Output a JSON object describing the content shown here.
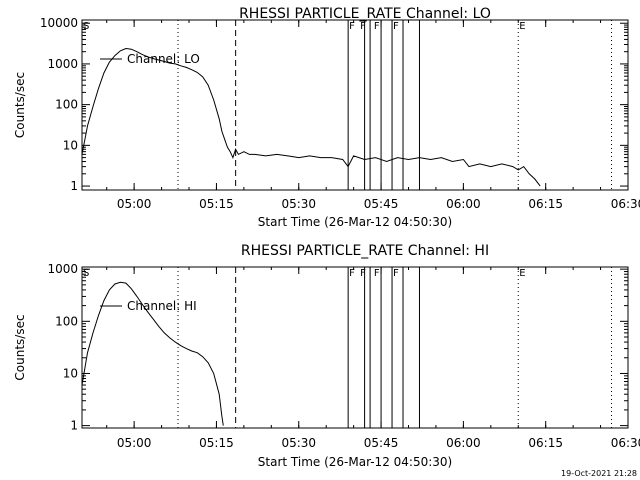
{
  "footer": {
    "timestamp": "19-Oct-2021 21:28"
  },
  "chart_data": [
    {
      "type": "line",
      "title": "RHESSI PARTICLE_RATE Channel: LO",
      "xlabel": "Start Time (26-Mar-12 04:50:30)",
      "ylabel": "Counts/sec",
      "yscale": "log",
      "xlim": [
        "04:50:30",
        "06:30:00"
      ],
      "ylim": [
        0.8,
        12000
      ],
      "x_tick_labels": [
        "05:00",
        "05:15",
        "05:30",
        "05:45",
        "06:00",
        "06:15",
        "06:30"
      ],
      "y_tick_labels": [
        "1",
        "10",
        "100",
        "1000",
        "10000"
      ],
      "legend": {
        "label": "Channel: LO",
        "placement": "top-left"
      },
      "series": [
        {
          "name": "Channel: LO",
          "points": [
            [
              "04:50:30",
              6
            ],
            [
              "04:51:30",
              30
            ],
            [
              "04:52:30",
              90
            ],
            [
              "04:53:30",
              250
            ],
            [
              "04:54:30",
              600
            ],
            [
              "04:55:30",
              1100
            ],
            [
              "04:56:30",
              1600
            ],
            [
              "04:57:30",
              2100
            ],
            [
              "04:58:30",
              2400
            ],
            [
              "04:59:30",
              2300
            ],
            [
              "05:00:30",
              2000
            ],
            [
              "05:01:30",
              1700
            ],
            [
              "05:02:30",
              1500
            ],
            [
              "05:03:30",
              1350
            ],
            [
              "05:04:30",
              1250
            ],
            [
              "05:05:30",
              1150
            ],
            [
              "05:06:30",
              1050
            ],
            [
              "05:07:30",
              1000
            ],
            [
              "05:08:30",
              900
            ],
            [
              "05:09:30",
              820
            ],
            [
              "05:10:30",
              720
            ],
            [
              "05:11:30",
              620
            ],
            [
              "05:12:30",
              480
            ],
            [
              "05:13:30",
              300
            ],
            [
              "05:14:30",
              130
            ],
            [
              "05:15:30",
              45
            ],
            [
              "05:16:00",
              22
            ],
            [
              "05:16:30",
              14
            ],
            [
              "05:17:00",
              9
            ],
            [
              "05:17:30",
              7
            ],
            [
              "05:18:00",
              5
            ],
            [
              "05:18:30",
              8
            ],
            [
              "05:19:00",
              6
            ],
            [
              "05:20:00",
              7
            ],
            [
              "05:21:00",
              6
            ],
            [
              "05:22:00",
              6
            ],
            [
              "05:24:00",
              5.5
            ],
            [
              "05:26:00",
              6
            ],
            [
              "05:28:00",
              5.5
            ],
            [
              "05:30:00",
              5
            ],
            [
              "05:32:00",
              5.5
            ],
            [
              "05:34:00",
              5
            ],
            [
              "05:36:00",
              5
            ],
            [
              "05:38:00",
              4.5
            ],
            [
              "05:39:00",
              3
            ],
            [
              "05:40:00",
              5.5
            ],
            [
              "05:42:00",
              4.5
            ],
            [
              "05:44:00",
              5
            ],
            [
              "05:46:00",
              4
            ],
            [
              "05:48:00",
              5
            ],
            [
              "05:50:00",
              4.5
            ],
            [
              "05:52:00",
              5
            ],
            [
              "05:54:00",
              4.5
            ],
            [
              "05:56:00",
              5
            ],
            [
              "05:58:00",
              4
            ],
            [
              "06:00:00",
              4.5
            ],
            [
              "06:01:00",
              3
            ],
            [
              "06:03:00",
              3.5
            ],
            [
              "06:05:00",
              3
            ],
            [
              "06:07:00",
              3.5
            ],
            [
              "06:09:00",
              3
            ],
            [
              "06:10:00",
              2.5
            ],
            [
              "06:11:00",
              3
            ],
            [
              "06:12:00",
              2
            ],
            [
              "06:13:00",
              1.5
            ],
            [
              "06:14:00",
              1
            ]
          ]
        }
      ],
      "markers": {
        "dotted_lines": [
          "05:08:00",
          "06:10:00",
          "06:27:00"
        ],
        "dashed_lines": [
          "05:18:30"
        ],
        "solid_lines": [
          "05:39:00",
          "05:42:00",
          "05:43:00",
          "05:45:00",
          "05:47:00",
          "05:49:00",
          "05:52:00"
        ],
        "letters": [
          {
            "x": "04:50:30",
            "text": "S"
          },
          {
            "x": "05:39:00",
            "text": "F"
          },
          {
            "x": "05:41:00",
            "text": "F"
          },
          {
            "x": "05:43:30",
            "text": "F"
          },
          {
            "x": "05:47:00",
            "text": "F"
          },
          {
            "x": "06:10:00",
            "text": "E"
          }
        ]
      }
    },
    {
      "type": "line",
      "title": "RHESSI PARTICLE_RATE Channel: HI",
      "xlabel": "Start Time (26-Mar-12 04:50:30)",
      "ylabel": "Counts/sec",
      "yscale": "log",
      "xlim": [
        "04:50:30",
        "06:30:00"
      ],
      "ylim": [
        0.9,
        1100
      ],
      "x_tick_labels": [
        "05:00",
        "05:15",
        "05:30",
        "05:45",
        "06:00",
        "06:15",
        "06:30"
      ],
      "y_tick_labels": [
        "1",
        "10",
        "100",
        "1000"
      ],
      "legend": {
        "label": "Channel: HI",
        "placement": "top-left"
      },
      "series": [
        {
          "name": "Channel: HI",
          "points": [
            [
              "04:50:30",
              6
            ],
            [
              "04:51:30",
              25
            ],
            [
              "04:52:30",
              60
            ],
            [
              "04:53:30",
              130
            ],
            [
              "04:54:30",
              250
            ],
            [
              "04:55:30",
              400
            ],
            [
              "04:56:30",
              520
            ],
            [
              "04:57:30",
              560
            ],
            [
              "04:58:30",
              540
            ],
            [
              "04:59:30",
              420
            ],
            [
              "05:00:30",
              300
            ],
            [
              "05:01:30",
              210
            ],
            [
              "05:02:30",
              150
            ],
            [
              "05:03:30",
              110
            ],
            [
              "05:04:30",
              80
            ],
            [
              "05:05:30",
              60
            ],
            [
              "05:06:30",
              48
            ],
            [
              "05:07:30",
              40
            ],
            [
              "05:08:30",
              34
            ],
            [
              "05:09:30",
              30
            ],
            [
              "05:10:30",
              27
            ],
            [
              "05:11:30",
              25
            ],
            [
              "05:12:30",
              21
            ],
            [
              "05:13:30",
              16
            ],
            [
              "05:14:30",
              10
            ],
            [
              "05:15:30",
              4
            ],
            [
              "05:16:00",
              1.5
            ],
            [
              "05:16:15",
              1
            ]
          ]
        }
      ],
      "markers": {
        "dotted_lines": [
          "05:08:00",
          "06:10:00",
          "06:27:00"
        ],
        "dashed_lines": [
          "05:18:30"
        ],
        "solid_lines": [
          "05:39:00",
          "05:42:00",
          "05:43:00",
          "05:45:00",
          "05:47:00",
          "05:49:00",
          "05:52:00"
        ],
        "letters": [
          {
            "x": "04:50:30",
            "text": "S"
          },
          {
            "x": "05:39:00",
            "text": "F"
          },
          {
            "x": "05:41:00",
            "text": "F"
          },
          {
            "x": "05:43:30",
            "text": "F"
          },
          {
            "x": "05:47:00",
            "text": "F"
          },
          {
            "x": "06:10:00",
            "text": "E"
          }
        ]
      }
    }
  ]
}
